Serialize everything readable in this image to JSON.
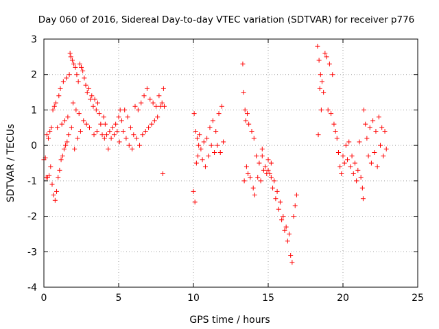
{
  "chart_data": {
    "type": "scatter",
    "title": "Day 060 of 2016, Sidereal Day-to-day VTEC variation (SDTVAR) for receiver p776",
    "xlabel": "GPS time / hours",
    "ylabel": "SDTVAR / TECUs",
    "xlim": [
      0,
      25
    ],
    "ylim": [
      -4,
      3
    ],
    "xticks": [
      0,
      5,
      10,
      15,
      20,
      25
    ],
    "yticks": [
      -4,
      -3,
      -2,
      -1,
      0,
      1,
      2,
      3
    ],
    "grid": true,
    "marker": "+",
    "marker_color": "#ff0000",
    "series": [
      {
        "name": "SDTVAR",
        "points": [
          [
            0.0,
            -0.4
          ],
          [
            0.1,
            -0.35
          ],
          [
            0.15,
            -0.9
          ],
          [
            0.2,
            0.3
          ],
          [
            0.25,
            -0.9
          ],
          [
            0.3,
            0.2
          ],
          [
            0.35,
            -0.85
          ],
          [
            0.4,
            0.4
          ],
          [
            0.45,
            -0.6
          ],
          [
            0.5,
            0.5
          ],
          [
            0.55,
            -1.1
          ],
          [
            0.6,
            1.0
          ],
          [
            0.65,
            -1.4
          ],
          [
            0.7,
            1.1
          ],
          [
            0.75,
            -1.55
          ],
          [
            0.8,
            1.2
          ],
          [
            0.85,
            -1.3
          ],
          [
            0.9,
            0.5
          ],
          [
            0.95,
            -0.9
          ],
          [
            1.0,
            1.4
          ],
          [
            1.05,
            -0.7
          ],
          [
            1.1,
            1.6
          ],
          [
            1.15,
            -0.4
          ],
          [
            1.2,
            0.6
          ],
          [
            1.25,
            -0.3
          ],
          [
            1.3,
            1.8
          ],
          [
            1.35,
            -0.1
          ],
          [
            1.4,
            0.7
          ],
          [
            1.45,
            0.0
          ],
          [
            1.5,
            1.9
          ],
          [
            1.55,
            0.1
          ],
          [
            1.6,
            0.8
          ],
          [
            1.65,
            0.3
          ],
          [
            1.7,
            2.0
          ],
          [
            1.75,
            2.6
          ],
          [
            1.8,
            2.5
          ],
          [
            1.85,
            0.5
          ],
          [
            1.9,
            2.4
          ],
          [
            1.95,
            1.2
          ],
          [
            2.0,
            2.3
          ],
          [
            2.05,
            -0.1
          ],
          [
            2.1,
            2.2
          ],
          [
            2.15,
            1.0
          ],
          [
            2.2,
            2.0
          ],
          [
            2.25,
            0.2
          ],
          [
            2.3,
            1.8
          ],
          [
            2.35,
            0.9
          ],
          [
            2.4,
            2.3
          ],
          [
            2.45,
            0.4
          ],
          [
            2.5,
            2.2
          ],
          [
            2.6,
            2.1
          ],
          [
            2.65,
            0.7
          ],
          [
            2.7,
            1.9
          ],
          [
            2.8,
            1.7
          ],
          [
            2.85,
            0.6
          ],
          [
            2.9,
            1.5
          ],
          [
            3.0,
            1.6
          ],
          [
            3.05,
            0.5
          ],
          [
            3.1,
            1.3
          ],
          [
            3.2,
            1.4
          ],
          [
            3.3,
            1.1
          ],
          [
            3.35,
            0.3
          ],
          [
            3.4,
            1.3
          ],
          [
            3.5,
            1.0
          ],
          [
            3.55,
            0.4
          ],
          [
            3.6,
            1.2
          ],
          [
            3.7,
            0.9
          ],
          [
            3.8,
            0.6
          ],
          [
            3.9,
            0.3
          ],
          [
            4.0,
            0.8
          ],
          [
            4.05,
            0.2
          ],
          [
            4.1,
            0.6
          ],
          [
            4.2,
            0.3
          ],
          [
            4.3,
            -0.1
          ],
          [
            4.4,
            0.4
          ],
          [
            4.5,
            0.2
          ],
          [
            4.6,
            0.5
          ],
          [
            4.7,
            0.3
          ],
          [
            4.8,
            0.6
          ],
          [
            4.9,
            0.4
          ],
          [
            5.0,
            0.8
          ],
          [
            5.05,
            0.1
          ],
          [
            5.1,
            1.0
          ],
          [
            5.2,
            0.7
          ],
          [
            5.3,
            0.4
          ],
          [
            5.4,
            1.0
          ],
          [
            5.5,
            0.2
          ],
          [
            5.6,
            0.8
          ],
          [
            5.7,
            0.0
          ],
          [
            5.8,
            0.5
          ],
          [
            5.9,
            -0.1
          ],
          [
            6.0,
            0.3
          ],
          [
            6.1,
            1.1
          ],
          [
            6.2,
            0.2
          ],
          [
            6.3,
            1.0
          ],
          [
            6.4,
            0.0
          ],
          [
            6.5,
            1.2
          ],
          [
            6.6,
            0.3
          ],
          [
            6.7,
            1.4
          ],
          [
            6.8,
            0.4
          ],
          [
            6.9,
            1.6
          ],
          [
            7.0,
            0.5
          ],
          [
            7.1,
            1.3
          ],
          [
            7.2,
            0.6
          ],
          [
            7.3,
            1.2
          ],
          [
            7.4,
            0.7
          ],
          [
            7.5,
            1.1
          ],
          [
            7.6,
            0.8
          ],
          [
            7.7,
            1.4
          ],
          [
            7.8,
            1.1
          ],
          [
            7.9,
            1.2
          ],
          [
            7.95,
            -0.8
          ],
          [
            8.0,
            1.6
          ],
          [
            8.05,
            1.1
          ],
          [
            10.0,
            -1.3
          ],
          [
            10.05,
            0.9
          ],
          [
            10.1,
            -1.6
          ],
          [
            10.15,
            0.4
          ],
          [
            10.2,
            -0.5
          ],
          [
            10.25,
            0.2
          ],
          [
            10.3,
            -0.3
          ],
          [
            10.35,
            0.0
          ],
          [
            10.4,
            0.3
          ],
          [
            10.5,
            -0.1
          ],
          [
            10.6,
            -0.4
          ],
          [
            10.7,
            0.1
          ],
          [
            10.8,
            -0.6
          ],
          [
            10.9,
            0.2
          ],
          [
            11.0,
            -0.3
          ],
          [
            11.1,
            0.5
          ],
          [
            11.2,
            0.0
          ],
          [
            11.3,
            0.7
          ],
          [
            11.4,
            -0.2
          ],
          [
            11.5,
            0.4
          ],
          [
            11.6,
            0.0
          ],
          [
            11.7,
            0.9
          ],
          [
            11.8,
            -0.2
          ],
          [
            11.9,
            1.1
          ],
          [
            12.0,
            0.1
          ],
          [
            13.3,
            2.3
          ],
          [
            13.35,
            1.5
          ],
          [
            13.4,
            -1.0
          ],
          [
            13.45,
            1.0
          ],
          [
            13.5,
            0.7
          ],
          [
            13.55,
            -0.6
          ],
          [
            13.6,
            0.9
          ],
          [
            13.65,
            -0.8
          ],
          [
            13.7,
            0.6
          ],
          [
            13.8,
            -0.9
          ],
          [
            13.9,
            0.4
          ],
          [
            14.0,
            -1.2
          ],
          [
            14.05,
            0.2
          ],
          [
            14.1,
            -1.4
          ],
          [
            14.2,
            -0.3
          ],
          [
            14.3,
            -0.9
          ],
          [
            14.4,
            -0.5
          ],
          [
            14.5,
            -1.0
          ],
          [
            14.6,
            -0.3
          ],
          [
            14.7,
            -0.7
          ],
          [
            14.8,
            -0.6
          ],
          [
            14.9,
            -0.8
          ],
          [
            15.0,
            -0.7
          ],
          [
            15.1,
            -0.8
          ],
          [
            15.2,
            -0.9
          ],
          [
            15.3,
            -1.2
          ],
          [
            15.4,
            -1.0
          ],
          [
            15.5,
            -1.5
          ],
          [
            15.6,
            -1.3
          ],
          [
            15.7,
            -1.8
          ],
          [
            15.8,
            -1.6
          ],
          [
            15.9,
            -2.1
          ],
          [
            16.0,
            -2.0
          ],
          [
            16.1,
            -2.4
          ],
          [
            16.2,
            -2.3
          ],
          [
            16.3,
            -2.7
          ],
          [
            16.4,
            -2.5
          ],
          [
            16.5,
            -3.1
          ],
          [
            16.6,
            -3.3
          ],
          [
            16.7,
            -2.0
          ],
          [
            16.8,
            -1.7
          ],
          [
            16.9,
            -1.4
          ],
          [
            15.0,
            -0.4
          ],
          [
            15.2,
            -0.5
          ],
          [
            14.6,
            -0.1
          ],
          [
            18.3,
            2.8
          ],
          [
            18.35,
            0.3
          ],
          [
            18.4,
            2.4
          ],
          [
            18.45,
            1.6
          ],
          [
            18.5,
            2.0
          ],
          [
            18.55,
            1.0
          ],
          [
            18.6,
            1.8
          ],
          [
            18.7,
            1.5
          ],
          [
            18.8,
            2.6
          ],
          [
            18.9,
            2.5
          ],
          [
            19.0,
            1.0
          ],
          [
            19.1,
            2.3
          ],
          [
            19.2,
            0.9
          ],
          [
            19.3,
            2.0
          ],
          [
            19.4,
            0.6
          ],
          [
            19.5,
            0.4
          ],
          [
            19.6,
            0.2
          ],
          [
            19.7,
            -0.2
          ],
          [
            19.8,
            -0.6
          ],
          [
            19.9,
            -0.8
          ],
          [
            20.0,
            -0.3
          ],
          [
            20.1,
            -0.5
          ],
          [
            20.2,
            0.0
          ],
          [
            20.3,
            -0.4
          ],
          [
            20.4,
            0.1
          ],
          [
            20.5,
            -0.6
          ],
          [
            20.6,
            -0.3
          ],
          [
            20.7,
            -0.8
          ],
          [
            20.8,
            -0.5
          ],
          [
            20.9,
            -1.0
          ],
          [
            21.0,
            -0.7
          ],
          [
            21.1,
            0.1
          ],
          [
            21.2,
            -0.9
          ],
          [
            21.3,
            -1.2
          ],
          [
            21.35,
            -1.5
          ],
          [
            21.4,
            1.0
          ],
          [
            21.5,
            0.6
          ],
          [
            21.6,
            0.2
          ],
          [
            21.7,
            -0.3
          ],
          [
            21.8,
            0.5
          ],
          [
            21.9,
            -0.5
          ],
          [
            22.0,
            0.7
          ],
          [
            22.1,
            -0.2
          ],
          [
            22.2,
            0.4
          ],
          [
            22.3,
            -0.6
          ],
          [
            22.4,
            0.8
          ],
          [
            22.5,
            0.0
          ],
          [
            22.6,
            0.5
          ],
          [
            22.7,
            -0.3
          ],
          [
            22.8,
            0.4
          ],
          [
            22.9,
            -0.1
          ]
        ]
      }
    ]
  }
}
